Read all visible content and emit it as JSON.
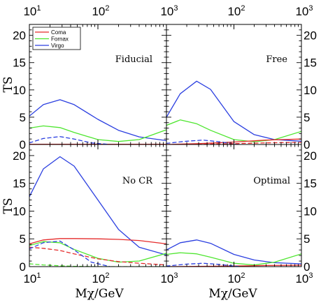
{
  "chart_data": [
    {
      "type": "line",
      "panel": "Fiducial",
      "label": "Fiducial",
      "xscale": "log",
      "xlim": [
        10,
        1000
      ],
      "ylim": [
        0,
        22
      ],
      "yticks": [
        0,
        5,
        10,
        15,
        20
      ],
      "ylabel": "TS",
      "legend": {
        "placement": "top-left",
        "entries": [
          "Coma",
          "Fornax",
          "Virgo"
        ]
      },
      "series": [
        {
          "name": "Virgo",
          "color": "#2b3fe0",
          "dash": false,
          "x": [
            10,
            16,
            28,
            45,
            100,
            200,
            400,
            1000
          ],
          "y": [
            5.2,
            7.3,
            8.2,
            7.3,
            4.6,
            2.6,
            1.4,
            0.7
          ]
        },
        {
          "name": "Fornax",
          "color": "#4ee62f",
          "dash": false,
          "x": [
            10,
            16,
            28,
            45,
            100,
            200,
            400,
            1000
          ],
          "y": [
            3.0,
            3.4,
            3.1,
            2.2,
            0.9,
            0.55,
            0.9,
            2.7
          ]
        },
        {
          "name": "Coma",
          "color": "#e52b2b",
          "dash": false,
          "x": [
            10,
            30,
            100,
            300,
            1000
          ],
          "y": [
            0.05,
            0.05,
            0.05,
            0.05,
            0.05
          ]
        },
        {
          "name": "Virgo",
          "color": "#2b3fe0",
          "dash": true,
          "x": [
            10,
            16,
            28,
            45,
            80,
            150
          ],
          "y": [
            0.3,
            1.1,
            1.45,
            1.0,
            0.3,
            0.0
          ]
        }
      ]
    },
    {
      "type": "line",
      "panel": "Free",
      "label": "Free",
      "xscale": "log",
      "xlim": [
        10,
        1000
      ],
      "ylim": [
        0,
        22
      ],
      "yticks": [
        0,
        5,
        10,
        15,
        20
      ],
      "series": [
        {
          "name": "Virgo",
          "color": "#2b3fe0",
          "dash": false,
          "x": [
            10,
            16,
            28,
            45,
            100,
            200,
            400,
            1000
          ],
          "y": [
            5.0,
            9.3,
            11.6,
            10.1,
            4.2,
            1.8,
            0.9,
            0.6
          ]
        },
        {
          "name": "Fornax",
          "color": "#4ee62f",
          "dash": false,
          "x": [
            10,
            16,
            28,
            45,
            100,
            200,
            400,
            1000
          ],
          "y": [
            3.5,
            4.5,
            3.8,
            2.6,
            0.9,
            0.5,
            0.9,
            2.4
          ]
        },
        {
          "name": "Coma",
          "color": "#e52b2b",
          "dash": false,
          "x": [
            10,
            30,
            100,
            300,
            1000
          ],
          "y": [
            0.0,
            0.15,
            0.45,
            0.8,
            1.0
          ]
        },
        {
          "name": "Virgo",
          "color": "#2b3fe0",
          "dash": true,
          "x": [
            10,
            20,
            35,
            60,
            120
          ],
          "y": [
            0.2,
            0.6,
            0.8,
            0.5,
            0.0
          ]
        },
        {
          "name": "Coma",
          "color": "#e52b2b",
          "dash": true,
          "x": [
            10,
            30,
            100,
            300,
            1000
          ],
          "y": [
            0.0,
            0.05,
            0.15,
            0.3,
            0.4
          ]
        }
      ]
    },
    {
      "type": "line",
      "panel": "No CR",
      "label": "No CR",
      "xscale": "log",
      "xlim": [
        10,
        1000
      ],
      "ylim": [
        0,
        22
      ],
      "yticks": [
        0,
        5,
        10,
        15,
        20
      ],
      "xlabel": "Mχ/GeV",
      "ylabel": "TS",
      "series": [
        {
          "name": "Virgo",
          "color": "#2b3fe0",
          "dash": false,
          "x": [
            10,
            16,
            28,
            45,
            100,
            200,
            400,
            1000
          ],
          "y": [
            12.6,
            17.6,
            19.8,
            18.1,
            12.0,
            6.7,
            3.5,
            2.1
          ]
        },
        {
          "name": "Coma",
          "color": "#e52b2b",
          "dash": false,
          "x": [
            10,
            16,
            28,
            45,
            100,
            200,
            400,
            1000
          ],
          "y": [
            4.1,
            4.8,
            5.05,
            5.05,
            5.0,
            4.9,
            4.7,
            4.1
          ]
        },
        {
          "name": "Fornax",
          "color": "#4ee62f",
          "dash": false,
          "x": [
            10,
            16,
            28,
            45,
            100,
            200,
            400,
            1000
          ],
          "y": [
            3.8,
            4.5,
            4.3,
            3.1,
            1.5,
            0.8,
            1.0,
            2.4
          ]
        },
        {
          "name": "Coma",
          "color": "#e52b2b",
          "dash": true,
          "x": [
            10,
            16,
            28,
            45,
            100,
            200,
            400,
            1000
          ],
          "y": [
            3.5,
            3.3,
            2.9,
            2.3,
            1.4,
            0.9,
            0.6,
            0.3
          ]
        },
        {
          "name": "Virgo",
          "color": "#2b3fe0",
          "dash": true,
          "x": [
            10,
            16,
            28,
            45,
            80,
            150
          ],
          "y": [
            3.2,
            4.3,
            4.6,
            3.0,
            0.8,
            0.0
          ]
        },
        {
          "name": "Fornax",
          "color": "#4ee62f",
          "dash": true,
          "x": [
            10,
            16,
            28,
            45,
            100,
            200,
            400,
            1000
          ],
          "y": [
            0.5,
            0.3,
            0.15,
            0.05,
            0.0,
            0.0,
            0.0,
            0.0
          ]
        }
      ]
    },
    {
      "type": "line",
      "panel": "Optimal",
      "label": "Optimal",
      "xscale": "log",
      "xlim": [
        10,
        1000
      ],
      "ylim": [
        0,
        22
      ],
      "yticks": [
        0,
        5,
        10,
        15,
        20
      ],
      "xlabel": "Mχ/GeV",
      "series": [
        {
          "name": "Virgo",
          "color": "#2b3fe0",
          "dash": false,
          "x": [
            10,
            16,
            28,
            45,
            100,
            200,
            400,
            1000
          ],
          "y": [
            3.0,
            4.3,
            4.8,
            4.2,
            2.2,
            1.2,
            0.7,
            0.5
          ]
        },
        {
          "name": "Fornax",
          "color": "#4ee62f",
          "dash": false,
          "x": [
            10,
            16,
            28,
            45,
            100,
            200,
            400,
            1000
          ],
          "y": [
            2.2,
            2.5,
            2.3,
            1.7,
            0.6,
            0.3,
            0.8,
            2.3
          ]
        },
        {
          "name": "Coma",
          "color": "#e52b2b",
          "dash": false,
          "x": [
            10,
            30,
            100,
            300,
            1000
          ],
          "y": [
            0.0,
            0.05,
            0.1,
            0.2,
            0.25
          ]
        },
        {
          "name": "Virgo",
          "color": "#2b3fe0",
          "dash": true,
          "x": [
            10,
            20,
            35,
            60,
            120
          ],
          "y": [
            0.1,
            0.45,
            0.6,
            0.4,
            0.0
          ]
        }
      ]
    }
  ],
  "axes": {
    "x_tick_labels": [
      "10",
      "10",
      "10"
    ],
    "x_tick_exponents": [
      "1",
      "2",
      "3"
    ]
  }
}
